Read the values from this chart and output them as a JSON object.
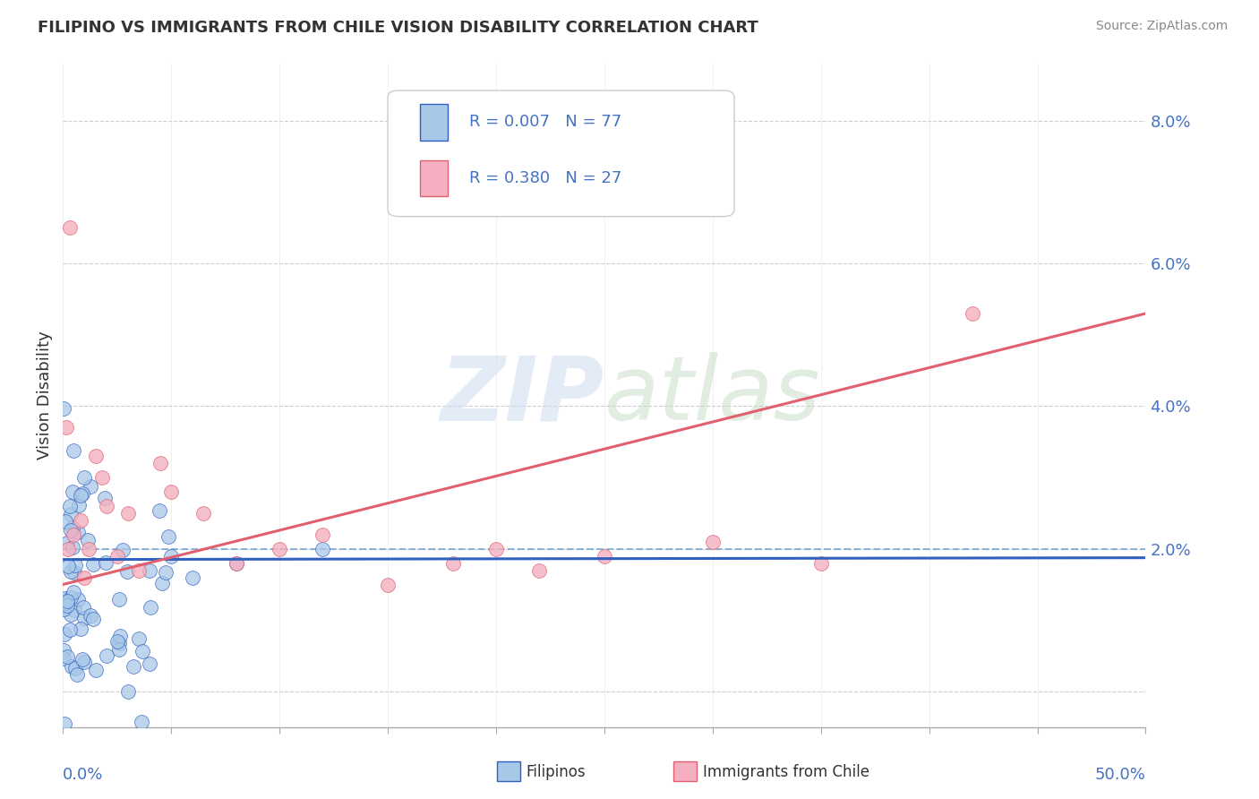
{
  "title": "FILIPINO VS IMMIGRANTS FROM CHILE VISION DISABILITY CORRELATION CHART",
  "source": "Source: ZipAtlas.com",
  "ylabel": "Vision Disability",
  "xlim": [
    0.0,
    50.0
  ],
  "ylim": [
    -0.5,
    8.8
  ],
  "yticks": [
    0.0,
    2.0,
    4.0,
    6.0,
    8.0
  ],
  "ytick_labels": [
    "",
    "2.0%",
    "4.0%",
    "6.0%",
    "8.0%"
  ],
  "color_filipino": "#a8c8e8",
  "color_chile": "#f4b0c0",
  "line_color_filipino": "#3060c0",
  "line_color_chile": "#e06070",
  "fil_trend_intercept": 1.85,
  "fil_trend_slope": 0.0005,
  "chile_trend_intercept": 1.5,
  "chile_trend_slope": 0.076,
  "watermark_text": "ZIP atlas"
}
